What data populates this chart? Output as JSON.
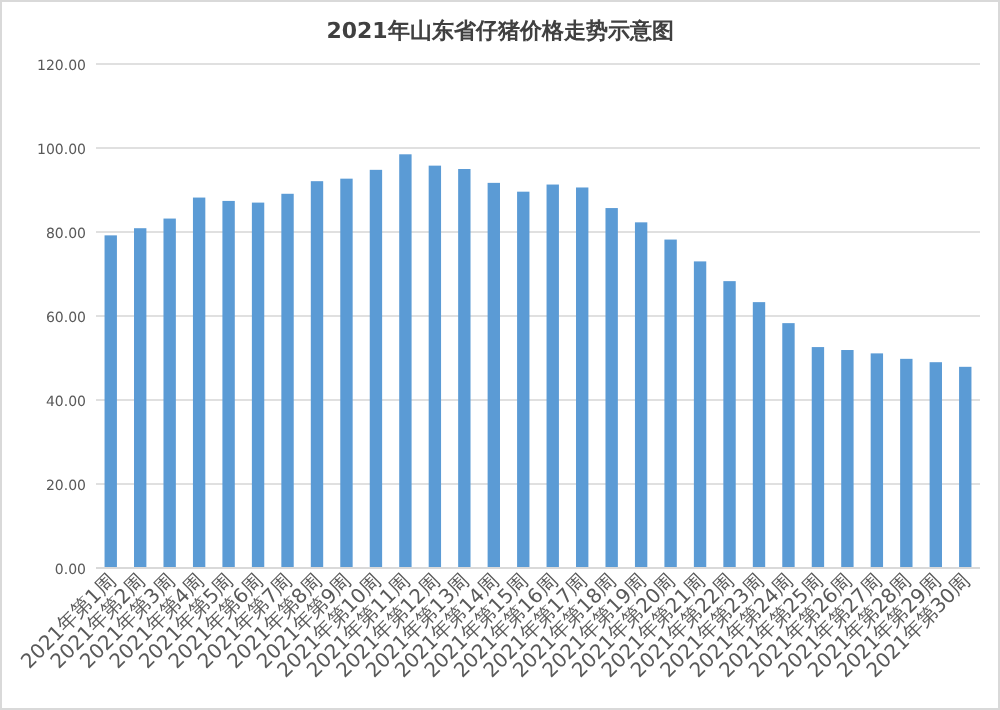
{
  "chart_data": {
    "type": "bar",
    "title": "2021年山东省仔猪价格走势示意图",
    "categories": [
      "2021年第1周",
      "2021年第2周",
      "2021年第3周",
      "2021年第4周",
      "2021年第5周",
      "2021年第6周",
      "2021年第7周",
      "2021年第8周",
      "2021年第9周",
      "2021年第10周",
      "2021年第11周",
      "2021年第12周",
      "2021年第13周",
      "2021年第14周",
      "2021年第15周",
      "2021年第16周",
      "2021年第17周",
      "2021年第18周",
      "2021年第19周",
      "2021年第20周",
      "2021年第21周",
      "2021年第22周",
      "2021年第23周",
      "2021年第24周",
      "2021年第25周",
      "2021年第26周",
      "2021年第27周",
      "2021年第28周",
      "2021年第29周",
      "2021年第30周"
    ],
    "values": [
      79.2,
      80.9,
      83.2,
      88.2,
      87.4,
      87.0,
      89.1,
      92.1,
      92.7,
      94.8,
      98.5,
      95.8,
      95.0,
      91.7,
      89.6,
      91.3,
      90.6,
      85.7,
      82.3,
      78.2,
      73.0,
      68.3,
      63.3,
      58.3,
      52.6,
      51.9,
      51.1,
      49.8,
      49.0,
      47.9
    ],
    "color": "#5b9bd5",
    "ylim": [
      0,
      120
    ],
    "yticks": [
      {
        "value": 0,
        "label": "0.00"
      },
      {
        "value": 20,
        "label": "20.00"
      },
      {
        "value": 40,
        "label": "40.00"
      },
      {
        "value": 60,
        "label": "60.00"
      },
      {
        "value": 80,
        "label": "80.00"
      },
      {
        "value": 100,
        "label": "100.00"
      },
      {
        "value": 120,
        "label": "120.00"
      }
    ],
    "grid": "y"
  }
}
